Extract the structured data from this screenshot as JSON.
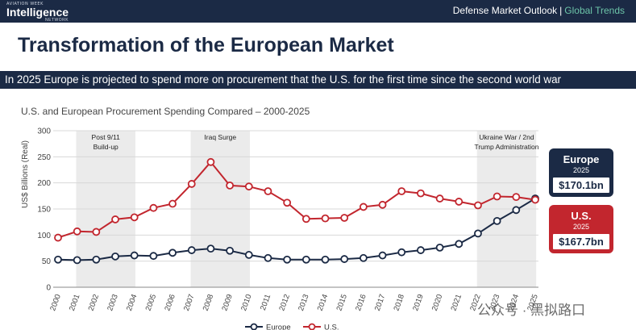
{
  "header": {
    "logo_top": "AVIATION WEEK",
    "logo_main": "Intelligence",
    "logo_sub": "NETWORK",
    "nav_primary": "Defense Market Outlook",
    "nav_separator": "|",
    "nav_secondary": "Global Trends"
  },
  "page_title": "Transformation of the European Market",
  "banner": "In 2025 Europe is projected to spend more on procurement that the U.S. for the first time since the second world war",
  "callouts": {
    "europe": {
      "name": "Europe",
      "year": "2025",
      "value": "$170.1bn"
    },
    "us": {
      "name": "U.S.",
      "year": "2025",
      "value": "$167.7bn"
    }
  },
  "watermark": "公众号 · 黑拟路口",
  "colors": {
    "navy": "#1b2a45",
    "red": "#c2262e",
    "shade": "#ebebeb",
    "accent": "#6cc4a8"
  },
  "chart_data": {
    "type": "line",
    "title": "U.S. and European Procurement Spending Compared – 2000-2025",
    "xlabel": "",
    "ylabel": "US$ Billions (Real)",
    "ylim": [
      0,
      300
    ],
    "yticks": [
      0,
      50,
      100,
      150,
      200,
      250,
      300
    ],
    "grid": true,
    "legend_position": "bottom",
    "x": [
      "2000",
      "2001",
      "2002",
      "2003",
      "2004",
      "2005",
      "2006",
      "2007",
      "2008",
      "2009",
      "2010",
      "2011",
      "2012",
      "2013",
      "2014",
      "2015",
      "2016",
      "2017",
      "2018",
      "2019",
      "2020",
      "2021",
      "2022",
      "2023",
      "2024",
      "2025"
    ],
    "series": [
      {
        "name": "Europe",
        "color": "#1b2a45",
        "values": [
          53,
          52,
          53,
          59,
          61,
          60,
          66,
          71,
          74,
          70,
          62,
          56,
          53,
          53,
          53,
          54,
          56,
          61,
          67,
          71,
          76,
          83,
          103,
          127,
          148,
          170.1
        ]
      },
      {
        "name": "U.S.",
        "color": "#c2262e",
        "values": [
          95,
          107,
          106,
          130,
          134,
          152,
          160,
          198,
          240,
          195,
          193,
          184,
          162,
          131,
          132,
          133,
          154,
          158,
          184,
          180,
          170,
          164,
          157,
          174,
          173,
          167.7
        ]
      }
    ],
    "annotations": [
      {
        "label": "Post 9/11 Build-up",
        "line1": "Post 9/11",
        "line2": "Build-up",
        "x_start": 2001,
        "x_end": 2004
      },
      {
        "label": "Iraq Surge",
        "line1": "Iraq Surge",
        "line2": "",
        "x_start": 2007,
        "x_end": 2010
      },
      {
        "label": "Ukraine War / 2nd Trump Administration",
        "line1": "Ukraine War / 2nd",
        "line2": "Trump Administration",
        "x_start": 2022,
        "x_end": 2025
      }
    ]
  }
}
